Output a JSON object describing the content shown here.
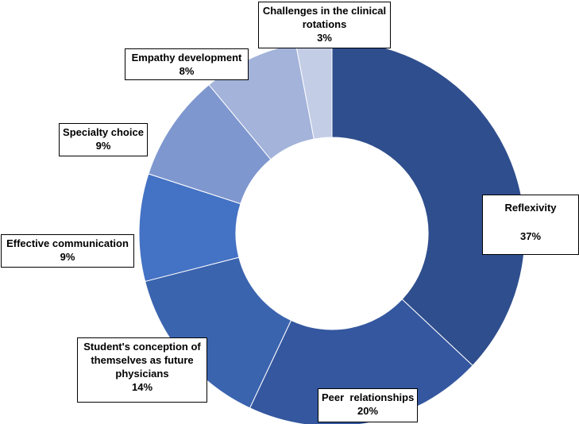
{
  "chart_data": {
    "type": "pie",
    "variant": "donut",
    "title": "",
    "slices": [
      {
        "label": "Reflexivity",
        "value": 37,
        "value_label": "37%",
        "color": "#2F4E8D"
      },
      {
        "label": "Peer  relationships",
        "value": 20,
        "value_label": "20%",
        "color": "#34579F"
      },
      {
        "label": "Student's conception of themselves as future physicians",
        "value": 14,
        "value_label": "14%",
        "color": "#3B64AF"
      },
      {
        "label": "Effective communication",
        "value": 9,
        "value_label": "9%",
        "color": "#4472C4"
      },
      {
        "label": "Specialty choice",
        "value": 9,
        "value_label": "9%",
        "color": "#7F97CF"
      },
      {
        "label": "Empathy development",
        "value": 8,
        "value_label": "8%",
        "color": "#A3B3DA"
      },
      {
        "label": "Challenges in the clinical rotations",
        "value": 3,
        "value_label": "3%",
        "color": "#C3CDE6"
      }
    ],
    "start_angle_deg": 0,
    "direction": "clockwise",
    "legend": "none"
  }
}
